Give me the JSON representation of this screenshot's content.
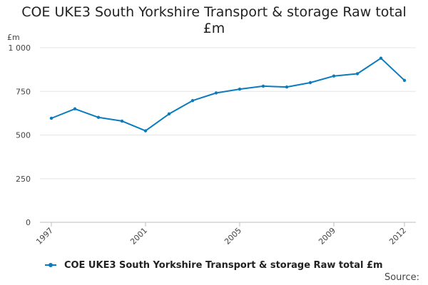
{
  "title_lines": [
    "COE UKE3 South Yorkshire Transport & storage Raw total",
    "£m"
  ],
  "source_label": "Source:",
  "chart_data": {
    "type": "line",
    "title": "COE UKE3 South Yorkshire Transport & storage Raw total £m",
    "ylabel": "£m",
    "ylim": [
      0,
      1000
    ],
    "xlim": [
      1997,
      2012
    ],
    "y_ticks": [
      0,
      250,
      500,
      750,
      1000
    ],
    "y_tick_labels": [
      "0",
      "250",
      "500",
      "750",
      "1 000"
    ],
    "x_ticks": [
      1997,
      2001,
      2005,
      2009,
      2012
    ],
    "x_tick_labels": [
      "1997",
      "2001",
      "2005",
      "2009",
      "2012"
    ],
    "grid": true,
    "legend_position": "bottom",
    "color": "#0b7bbd",
    "series": [
      {
        "name": "COE UKE3 South Yorkshire Transport & storage Raw total £m",
        "x": [
          1997,
          1998,
          1999,
          2000,
          2001,
          2002,
          2003,
          2004,
          2005,
          2006,
          2007,
          2008,
          2009,
          2010,
          2011,
          2012
        ],
        "values": [
          596,
          650,
          601,
          580,
          524,
          621,
          697,
          741,
          763,
          780,
          775,
          800,
          838,
          851,
          940,
          813
        ]
      }
    ]
  }
}
